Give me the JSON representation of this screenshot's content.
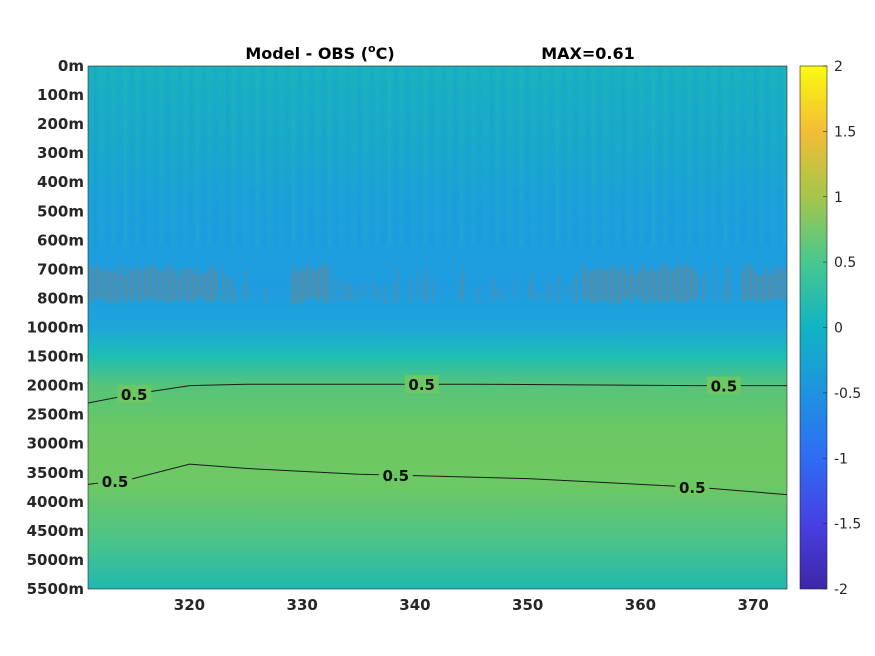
{
  "chart_data": {
    "type": "heatmap",
    "title": "Model - OBS (°C)",
    "title_prefix": "Model - OBS (",
    "title_superscript": "o",
    "title_suffix": "C)",
    "annotation": "MAX=0.61",
    "x_ticks": [
      320,
      330,
      340,
      350,
      360,
      370
    ],
    "xlim": [
      311,
      373
    ],
    "y_tick_labels": [
      "0m",
      "100m",
      "200m",
      "300m",
      "400m",
      "500m",
      "600m",
      "700m",
      "800m",
      "1000m",
      "1500m",
      "2000m",
      "2500m",
      "3000m",
      "3500m",
      "4000m",
      "4500m",
      "5000m",
      "5500m"
    ],
    "colorbar": {
      "ticks": [
        2,
        1.5,
        1,
        0.5,
        0,
        -0.5,
        -1,
        -1.5,
        -2
      ],
      "tick_labels": [
        "2",
        "1.5",
        "1",
        "0.5",
        "0",
        "-0.5",
        "-1",
        "-1.5",
        "-2"
      ],
      "range": [
        -2,
        2
      ],
      "colormap": "parula"
    },
    "depth_profile": [
      {
        "depth": "0m",
        "value": -0.05
      },
      {
        "depth": "100m",
        "value": -0.15
      },
      {
        "depth": "200m",
        "value": -0.22
      },
      {
        "depth": "300m",
        "value": -0.28
      },
      {
        "depth": "400m",
        "value": -0.3
      },
      {
        "depth": "500m",
        "value": -0.45
      },
      {
        "depth": "600m",
        "value": -0.55
      },
      {
        "depth": "700m",
        "value": -0.6
      },
      {
        "depth": "800m",
        "value": -0.62
      },
      {
        "depth": "1000m",
        "value": -0.5
      },
      {
        "depth": "1500m",
        "value": 0.1
      },
      {
        "depth": "2000m",
        "value": 0.5
      },
      {
        "depth": "2500m",
        "value": 0.58
      },
      {
        "depth": "3000m",
        "value": 0.61
      },
      {
        "depth": "3500m",
        "value": 0.55
      },
      {
        "depth": "4000m",
        "value": 0.48
      },
      {
        "depth": "4500m",
        "value": 0.4
      },
      {
        "depth": "5000m",
        "value": 0.3
      },
      {
        "depth": "5500m",
        "value": 0.1
      }
    ],
    "contours": [
      {
        "level": 0.5,
        "label": "0.5",
        "upper_depth_index": [
          11.6,
          11.3,
          11.0,
          10.95,
          10.95,
          10.95,
          11.0,
          11.0
        ],
        "x": [
          311,
          315,
          320,
          325,
          330,
          345,
          365,
          373
        ]
      },
      {
        "level": 0.5,
        "label": "0.5",
        "upper_depth_index": [
          14.4,
          14.2,
          13.7,
          13.85,
          14.05,
          14.2,
          14.5,
          14.75
        ],
        "x": [
          311,
          315,
          320,
          325,
          335,
          350,
          365,
          373
        ]
      }
    ],
    "contour_labels": [
      "0.5",
      "0.5",
      "0.5",
      "0.5",
      "0.5",
      "0.5"
    ],
    "colors": {
      "surface": "#1ab0c0",
      "mid_blue": "#1f9ce0",
      "deep_green": "#6cc862",
      "bottom": "#22b8b0",
      "noise": "#a07a5a",
      "colorbar_top": "#f9fb0e",
      "colorbar_bottom": "#3e26a8"
    }
  }
}
